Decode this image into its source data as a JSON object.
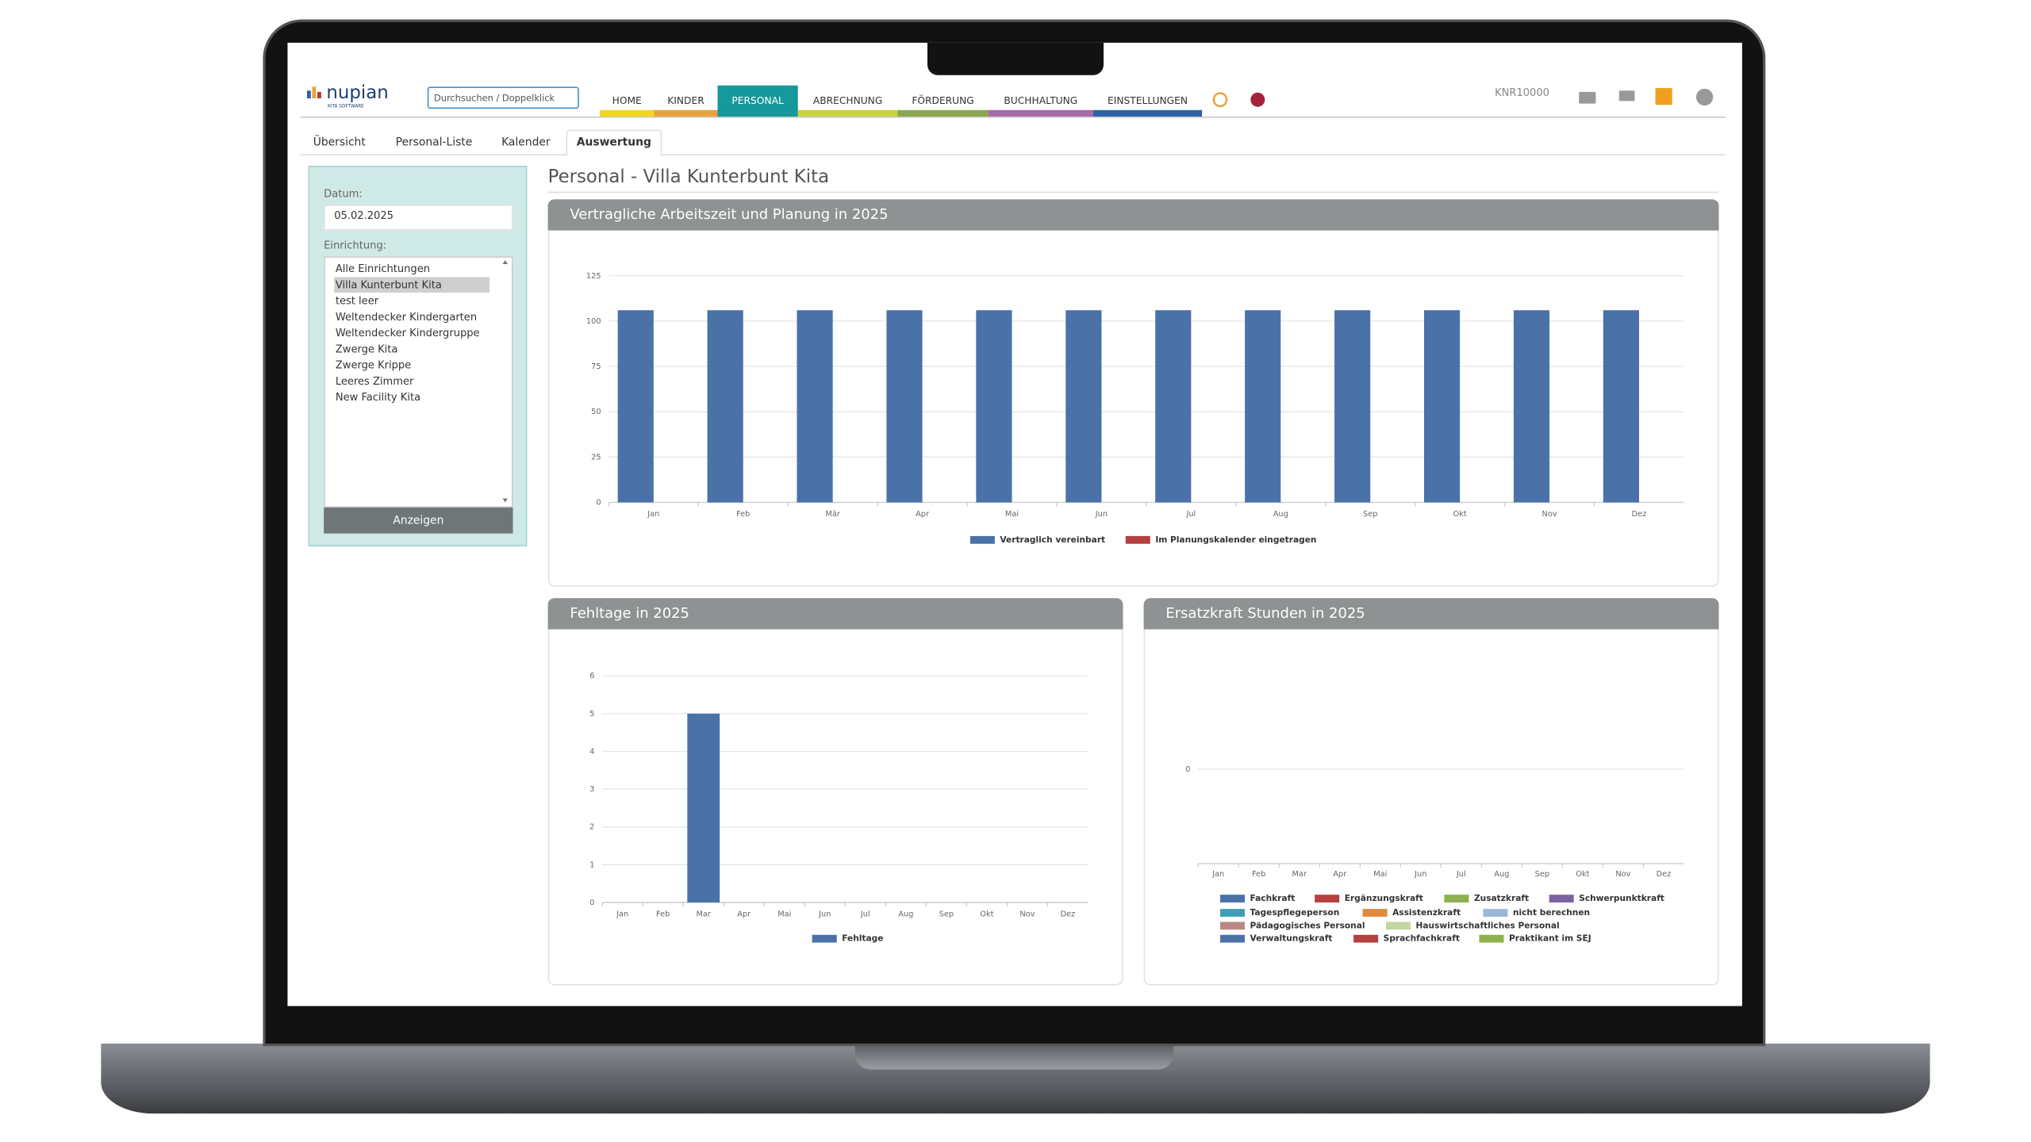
{
  "app": {
    "logo": "nupian",
    "logo_sub": "KITA SOFTWARE",
    "search": "Durchsuchen / Doppelklick",
    "nav": [
      {
        "label": "HOME",
        "color": "#f2d51c"
      },
      {
        "label": "KINDER",
        "color": "#e9a23b"
      },
      {
        "label": "PERSONAL",
        "color": "#17989a"
      },
      {
        "label": "ABRECHNUNG",
        "color": "#c9d33a"
      },
      {
        "label": "FÖRDERUNG",
        "color": "#8aa650"
      },
      {
        "label": "BUCHHALTUNG",
        "color": "#a66aa8"
      },
      {
        "label": "EINSTELLUNGEN",
        "color": "#2f62a8"
      }
    ],
    "user": "KNR10000",
    "tabs": [
      "Übersicht",
      "Personal-Liste",
      "Kalender",
      "Auswertung"
    ],
    "date_label": "Datum:",
    "date": "05.02.2025",
    "facility_label": "Einrichtung:",
    "facilities": [
      "Alle Einrichtungen",
      "Villa Kunterbunt Kita",
      "test leer",
      "Weltendecker Kindergarten",
      "Weltendecker Kindergruppe",
      "Zwerge Kita",
      "Zwerge Krippe",
      "Leeres Zimmer",
      "New Facility Kita"
    ],
    "button": "Anzeigen",
    "heading": "Personal - Villa Kunterbunt Kita"
  },
  "chart_data": [
    {
      "type": "bar",
      "title": "Vertragliche Arbeitszeit und Planung in 2025",
      "categories": [
        "Jan",
        "Feb",
        "Mär",
        "Apr",
        "Mai",
        "Jun",
        "Jul",
        "Aug",
        "Sep",
        "Okt",
        "Nov",
        "Dez"
      ],
      "series": [
        {
          "name": "Vertraglich vereinbart",
          "color": "#4a72a8",
          "values": [
            106,
            106,
            106,
            106,
            106,
            106,
            106,
            106,
            106,
            106,
            106,
            106
          ]
        },
        {
          "name": "Im Planungskalender eingetragen",
          "color": "#b5403f",
          "values": [
            0,
            0,
            0,
            0,
            0,
            0,
            0,
            0,
            0,
            0,
            0,
            0
          ]
        }
      ],
      "ylim": [
        0,
        125
      ],
      "yticks": [
        0,
        25,
        50,
        75,
        100,
        125
      ],
      "grid": true
    },
    {
      "type": "bar",
      "title": "Fehltage in 2025",
      "categories": [
        "Jan",
        "Feb",
        "Mar",
        "Apr",
        "Mai",
        "Jun",
        "Jul",
        "Aug",
        "Sep",
        "Okt",
        "Nov",
        "Dez"
      ],
      "series": [
        {
          "name": "Fehltage",
          "color": "#4a72a8",
          "values": [
            0,
            0,
            5,
            0,
            0,
            0,
            0,
            0,
            0,
            0,
            0,
            0
          ]
        }
      ],
      "ylim": [
        0,
        6
      ],
      "yticks": [
        0,
        1,
        2,
        3,
        4,
        5,
        6
      ],
      "grid": true
    },
    {
      "type": "bar",
      "title": "Ersatzkraft Stunden in 2025",
      "categories": [
        "Jan",
        "Feb",
        "Mar",
        "Apr",
        "Mai",
        "Jun",
        "Jul",
        "Aug",
        "Sep",
        "Okt",
        "Nov",
        "Dez"
      ],
      "series": [
        {
          "name": "Fachkraft",
          "color": "#4a72a8",
          "values": [
            0,
            0,
            0,
            0,
            0,
            0,
            0,
            0,
            0,
            0,
            0,
            0
          ]
        },
        {
          "name": "Ergänzungskraft",
          "color": "#b5403f",
          "values": [
            0,
            0,
            0,
            0,
            0,
            0,
            0,
            0,
            0,
            0,
            0,
            0
          ]
        },
        {
          "name": "Zusatzkraft",
          "color": "#8fb04f",
          "values": [
            0,
            0,
            0,
            0,
            0,
            0,
            0,
            0,
            0,
            0,
            0,
            0
          ]
        },
        {
          "name": "Schwerpunktkraft",
          "color": "#7d63a0",
          "values": [
            0,
            0,
            0,
            0,
            0,
            0,
            0,
            0,
            0,
            0,
            0,
            0
          ]
        },
        {
          "name": "Tagespflegeperson",
          "color": "#3d9fb5",
          "values": [
            0,
            0,
            0,
            0,
            0,
            0,
            0,
            0,
            0,
            0,
            0,
            0
          ]
        },
        {
          "name": "Assistenzkraft",
          "color": "#e3893a",
          "values": [
            0,
            0,
            0,
            0,
            0,
            0,
            0,
            0,
            0,
            0,
            0,
            0
          ]
        },
        {
          "name": "nicht berechnen",
          "color": "#9db6d8",
          "values": [
            0,
            0,
            0,
            0,
            0,
            0,
            0,
            0,
            0,
            0,
            0,
            0
          ]
        },
        {
          "name": "Pädagogisches Personal",
          "color": "#b98886",
          "values": [
            0,
            0,
            0,
            0,
            0,
            0,
            0,
            0,
            0,
            0,
            0,
            0
          ]
        },
        {
          "name": "Hauswirtschaftliches Personal",
          "color": "#c4d6a0",
          "values": [
            0,
            0,
            0,
            0,
            0,
            0,
            0,
            0,
            0,
            0,
            0,
            0
          ]
        },
        {
          "name": "Verwaltungskraft",
          "color": "#4a72a8",
          "values": [
            0,
            0,
            0,
            0,
            0,
            0,
            0,
            0,
            0,
            0,
            0,
            0
          ]
        },
        {
          "name": "Sprachfachkraft",
          "color": "#b5403f",
          "values": [
            0,
            0,
            0,
            0,
            0,
            0,
            0,
            0,
            0,
            0,
            0,
            0
          ]
        },
        {
          "name": "Praktikant im SEJ",
          "color": "#8fb04f",
          "values": [
            0,
            0,
            0,
            0,
            0,
            0,
            0,
            0,
            0,
            0,
            0,
            0
          ]
        }
      ],
      "ylim": [
        -1,
        1
      ],
      "yticks": [
        0
      ],
      "grid": true
    }
  ]
}
